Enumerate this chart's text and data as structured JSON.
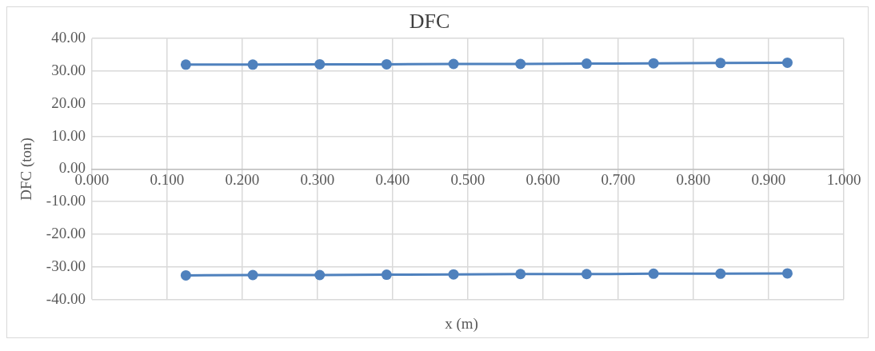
{
  "chart_data": {
    "type": "line",
    "title": "DFC",
    "xlabel": "x (m)",
    "ylabel": "DFC (ton)",
    "x": [
      0.125,
      0.214,
      0.303,
      0.392,
      0.481,
      0.57,
      0.658,
      0.747,
      0.836,
      0.925
    ],
    "series": [
      {
        "color": "#4f81bd",
        "values": [
          32.0,
          32.0,
          32.1,
          32.1,
          32.2,
          32.2,
          32.3,
          32.4,
          32.5,
          32.6
        ]
      },
      {
        "color": "#4f81bd",
        "values": [
          -32.6,
          -32.5,
          -32.5,
          -32.4,
          -32.3,
          -32.2,
          -32.2,
          -32.1,
          -32.1,
          -32.0
        ]
      }
    ],
    "xlim": [
      0,
      1
    ],
    "xticks": [
      {
        "value": 0,
        "label": "0.000"
      },
      {
        "value": 0.1,
        "label": "0.100"
      },
      {
        "value": 0.2,
        "label": "0.200"
      },
      {
        "value": 0.3,
        "label": "0.300"
      },
      {
        "value": 0.4,
        "label": "0.400"
      },
      {
        "value": 0.5,
        "label": "0.500"
      },
      {
        "value": 0.6,
        "label": "0.600"
      },
      {
        "value": 0.7,
        "label": "0.700"
      },
      {
        "value": 0.8,
        "label": "0.800"
      },
      {
        "value": 0.9,
        "label": "0.900"
      },
      {
        "value": 1,
        "label": "1.000"
      }
    ],
    "ylim": [
      -40,
      40
    ],
    "yticks": [
      {
        "value": -40,
        "label": "-40.00"
      },
      {
        "value": -30,
        "label": "-30.00"
      },
      {
        "value": -20,
        "label": "-20.00"
      },
      {
        "value": -10,
        "label": "-10.00"
      },
      {
        "value": 0,
        "label": "0.00"
      },
      {
        "value": 10,
        "label": "10.00"
      },
      {
        "value": 20,
        "label": "20.00"
      },
      {
        "value": 30,
        "label": "30.00"
      },
      {
        "value": 40,
        "label": "40.00"
      }
    ],
    "grid": true,
    "legend": false,
    "marker": "circle",
    "line_style": "solid"
  }
}
